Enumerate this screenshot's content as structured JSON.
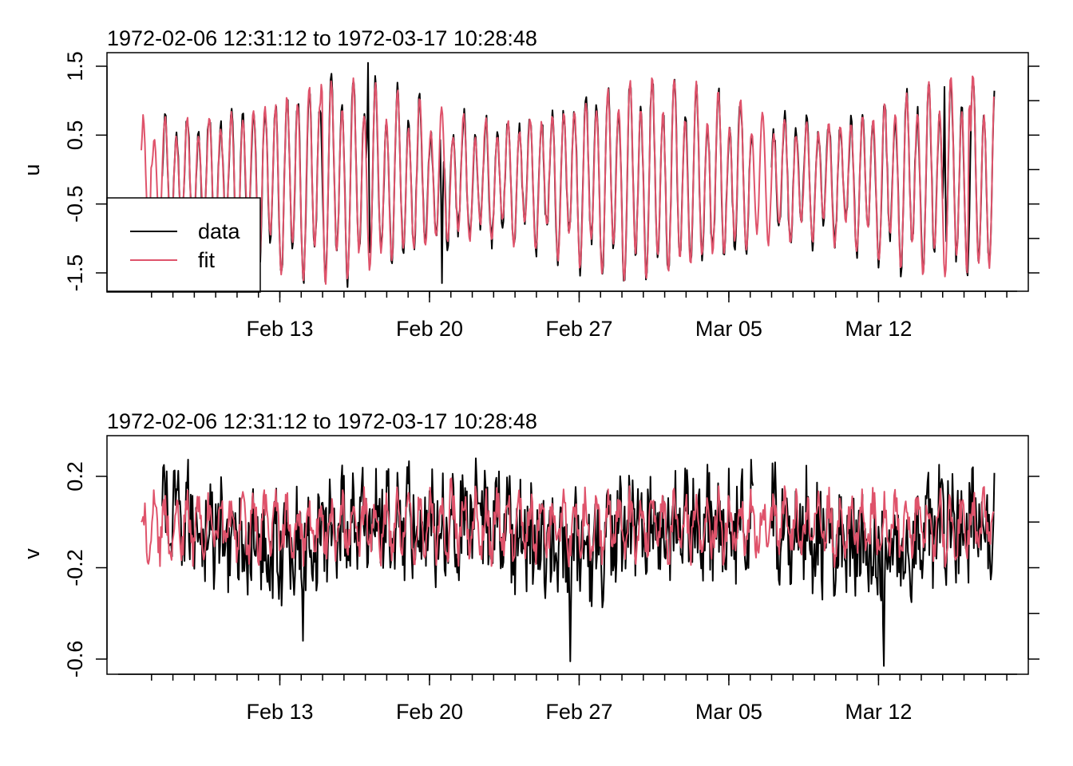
{
  "chart_data": [
    {
      "type": "line",
      "title": "1972-02-06 12:31:12 to 1972-03-17 10:28:48",
      "ylabel": "u",
      "xlabel": "",
      "x_range": [
        "1972-02-06T12:31:12",
        "1972-03-17T10:28:48"
      ],
      "x_ticks": [
        {
          "date": "1972-02-13",
          "label": "Feb 13"
        },
        {
          "date": "1972-02-20",
          "label": "Feb 20"
        },
        {
          "date": "1972-02-27",
          "label": "Feb 27"
        },
        {
          "date": "1972-03-05",
          "label": "Mar 05"
        },
        {
          "date": "1972-03-12",
          "label": "Mar 12"
        }
      ],
      "y_ticks": [
        {
          "value": 1.5,
          "label": "1.5"
        },
        {
          "value": 0.5,
          "label": "0.5"
        },
        {
          "value": -0.5,
          "label": "-0.5"
        },
        {
          "value": -1.5,
          "label": "-1.5"
        }
      ],
      "ylim": [
        -1.75,
        1.65
      ],
      "grid": false,
      "legend_position": "bottom-left",
      "series": [
        {
          "name": "data",
          "color": "#000000",
          "start": "1972-02-07T12:00:00",
          "end": "1972-03-17T10:28:48",
          "gap": [
            "1972-03-06T03:00:00",
            "1972-03-07T00:00:00"
          ],
          "points": [
            [
              "1972-02-07T12:00:00",
              -0.1
            ],
            [
              "1972-02-17T03:00:00",
              1.55
            ],
            [
              "1972-02-20T14:00:00",
              -1.65
            ],
            [
              "1972-03-15T02:00:00",
              1.2
            ]
          ]
        },
        {
          "name": "fit",
          "color": "#df536b",
          "start": "1972-02-06T12:31:12",
          "end": "1972-03-17T10:28:48",
          "points": [
            [
              "1972-02-06T12:31:12",
              0.28
            ],
            [
              "1972-02-07T00:00:00",
              0.1
            ],
            [
              "1972-02-14T23:00:00",
              1.35
            ],
            [
              "1972-03-16T06:00:00",
              1.17
            ]
          ]
        }
      ]
    },
    {
      "type": "line",
      "title": "1972-02-06 12:31:12 to 1972-03-17 10:28:48",
      "ylabel": "v",
      "xlabel": "",
      "x_range": [
        "1972-02-06T12:31:12",
        "1972-03-17T10:28:48"
      ],
      "x_ticks": [
        {
          "date": "1972-02-13",
          "label": "Feb 13"
        },
        {
          "date": "1972-02-20",
          "label": "Feb 20"
        },
        {
          "date": "1972-02-27",
          "label": "Feb 27"
        },
        {
          "date": "1972-03-05",
          "label": "Mar 05"
        },
        {
          "date": "1972-03-12",
          "label": "Mar 12"
        }
      ],
      "y_ticks": [
        {
          "value": 0.2,
          "label": "0.2"
        },
        {
          "value": -0.2,
          "label": "-0.2"
        },
        {
          "value": -0.6,
          "label": "-0.6"
        }
      ],
      "ylim": [
        -0.65,
        0.36
      ],
      "grid": false,
      "series": [
        {
          "name": "data",
          "color": "#000000",
          "start": "1972-02-07T12:00:00",
          "end": "1972-03-17T10:28:48",
          "gap": [
            "1972-03-06T03:00:00",
            "1972-03-07T00:00:00"
          ],
          "points": [
            [
              "1972-02-07T14:00:00",
              0.25
            ],
            [
              "1972-02-14T02:00:00",
              -0.52
            ],
            [
              "1972-02-26T14:00:00",
              -0.61
            ],
            [
              "1972-03-12T06:00:00",
              -0.63
            ],
            [
              "1972-03-17T10:28:48",
              0.22
            ]
          ]
        },
        {
          "name": "fit",
          "color": "#df536b",
          "start": "1972-02-06T12:31:12",
          "end": "1972-03-17T10:28:48",
          "points": [
            [
              "1972-02-06T12:31:12",
              0.0
            ],
            [
              "1972-02-06T20:00:00",
              -0.18
            ],
            [
              "1972-02-21T00:00:00",
              0.22
            ],
            [
              "1972-03-17T10:28:48",
              0.01
            ]
          ]
        }
      ]
    }
  ]
}
